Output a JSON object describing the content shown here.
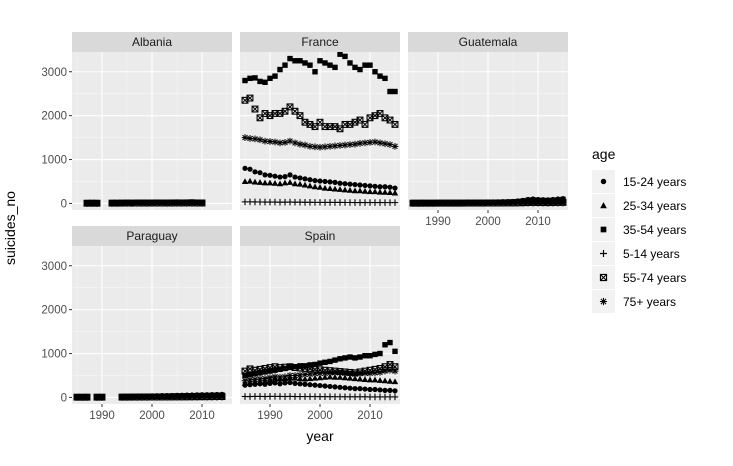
{
  "chart_data": {
    "type": "scatter",
    "facet_by": "country",
    "layout": "3 columns x 2 rows, shared axes",
    "xlabel": "year",
    "ylabel": "suicides_no",
    "xlim": [
      1984,
      2016
    ],
    "ylim": [
      -150,
      3450
    ],
    "x_ticks": [
      1990,
      2000,
      2010
    ],
    "y_ticks": [
      0,
      1000,
      2000,
      3000
    ],
    "grid": true,
    "legend": {
      "title": "age",
      "placement": "right",
      "entries": [
        {
          "label": "15-24 years",
          "shape": "circle"
        },
        {
          "label": "25-34 years",
          "shape": "triangle"
        },
        {
          "label": "35-54 years",
          "shape": "square"
        },
        {
          "label": "5-14 years",
          "shape": "plus"
        },
        {
          "label": "55-74 years",
          "shape": "boxed-x"
        },
        {
          "label": "75+ years",
          "shape": "asterisk"
        }
      ]
    },
    "series_order": [
      "15-24 years",
      "25-34 years",
      "35-54 years",
      "5-14 years",
      "55-74 years",
      "75+ years"
    ],
    "panels": [
      {
        "name": "Albania",
        "years": [
          1987,
          1988,
          1989,
          1992,
          1993,
          1994,
          1995,
          1996,
          1997,
          1998,
          1999,
          2000,
          2001,
          2002,
          2003,
          2004,
          2005,
          2006,
          2007,
          2008,
          2009,
          2010
        ],
        "values": {
          "15-24 years": [
            15,
            16,
            14,
            20,
            18,
            22,
            25,
            20,
            30,
            28,
            25,
            27,
            30,
            28,
            26,
            30,
            33,
            30,
            32,
            35,
            30,
            28
          ],
          "25-34 years": [
            10,
            11,
            10,
            14,
            13,
            16,
            18,
            15,
            22,
            20,
            18,
            20,
            22,
            21,
            19,
            22,
            24,
            22,
            23,
            25,
            22,
            20
          ],
          "35-54 years": [
            12,
            13,
            12,
            16,
            15,
            18,
            20,
            18,
            26,
            24,
            22,
            24,
            26,
            25,
            23,
            26,
            28,
            26,
            27,
            30,
            26,
            24
          ],
          "5-14 years": [
            1,
            2,
            1,
            2,
            2,
            3,
            3,
            2,
            3,
            3,
            2,
            3,
            3,
            2,
            2,
            3,
            3,
            3,
            2,
            3,
            2,
            2
          ],
          "55-74 years": [
            5,
            6,
            5,
            7,
            7,
            8,
            9,
            8,
            10,
            9,
            9,
            10,
            11,
            10,
            9,
            11,
            12,
            11,
            12,
            13,
            11,
            10
          ],
          "75+ years": [
            2,
            2,
            2,
            3,
            3,
            3,
            4,
            3,
            4,
            4,
            3,
            4,
            4,
            4,
            3,
            4,
            5,
            4,
            5,
            5,
            4,
            4
          ]
        }
      },
      {
        "name": "France",
        "years": [
          1985,
          1986,
          1987,
          1988,
          1989,
          1990,
          1991,
          1992,
          1993,
          1994,
          1995,
          1996,
          1997,
          1998,
          1999,
          2000,
          2001,
          2002,
          2003,
          2004,
          2005,
          2006,
          2007,
          2008,
          2009,
          2010,
          2011,
          2012,
          2013,
          2014,
          2015
        ],
        "values": {
          "15-24 years": [
            800,
            780,
            720,
            700,
            650,
            640,
            620,
            600,
            610,
            650,
            600,
            580,
            560,
            540,
            520,
            510,
            500,
            490,
            480,
            460,
            450,
            440,
            430,
            420,
            410,
            400,
            390,
            380,
            380,
            370,
            350
          ],
          "25-34 years": [
            500,
            510,
            490,
            480,
            470,
            470,
            460,
            450,
            470,
            480,
            450,
            440,
            420,
            400,
            380,
            370,
            350,
            340,
            330,
            320,
            310,
            300,
            290,
            290,
            280,
            270,
            270,
            260,
            255,
            250,
            240
          ],
          "35-54 years": [
            2800,
            2850,
            2860,
            2780,
            2760,
            2850,
            2900,
            3050,
            3150,
            3300,
            3250,
            3250,
            3200,
            3150,
            3000,
            3250,
            3200,
            3150,
            3100,
            3400,
            3350,
            3200,
            3100,
            3050,
            3150,
            3150,
            3000,
            2900,
            2850,
            2550,
            2550
          ],
          "5-14 years": [
            35,
            35,
            33,
            32,
            30,
            30,
            30,
            28,
            28,
            30,
            28,
            27,
            26,
            25,
            24,
            24,
            23,
            23,
            22,
            22,
            21,
            21,
            20,
            20,
            20,
            20,
            19,
            19,
            18,
            18,
            18
          ],
          "55-74 years": [
            2350,
            2400,
            2150,
            1950,
            2050,
            2000,
            2050,
            2050,
            2100,
            2200,
            2100,
            2000,
            1850,
            1800,
            1750,
            1850,
            1750,
            1750,
            1750,
            1700,
            1800,
            1800,
            1850,
            1900,
            1800,
            1950,
            2000,
            2050,
            1950,
            1900,
            1800
          ],
          "75+ years": [
            1500,
            1480,
            1470,
            1450,
            1420,
            1410,
            1400,
            1380,
            1390,
            1420,
            1380,
            1350,
            1330,
            1300,
            1290,
            1280,
            1290,
            1300,
            1310,
            1320,
            1330,
            1340,
            1350,
            1370,
            1380,
            1390,
            1400,
            1380,
            1360,
            1340,
            1300
          ]
        }
      },
      {
        "name": "Guatemala",
        "years": [
          1985,
          1986,
          1987,
          1988,
          1989,
          1990,
          1991,
          1992,
          1993,
          1994,
          1995,
          1996,
          1997,
          1998,
          1999,
          2000,
          2001,
          2002,
          2003,
          2004,
          2005,
          2006,
          2007,
          2008,
          2009,
          2010,
          2011,
          2012,
          2013,
          2014,
          2015
        ],
        "values": {
          "15-24 years": [
            25,
            24,
            26,
            25,
            24,
            26,
            27,
            28,
            27,
            26,
            28,
            30,
            29,
            30,
            31,
            32,
            34,
            36,
            38,
            40,
            45,
            55,
            70,
            90,
            100,
            90,
            85,
            80,
            90,
            100,
            110
          ],
          "25-34 years": [
            15,
            15,
            16,
            15,
            15,
            16,
            17,
            17,
            16,
            16,
            17,
            18,
            18,
            19,
            20,
            21,
            22,
            24,
            26,
            28,
            32,
            38,
            48,
            60,
            65,
            60,
            58,
            55,
            60,
            68,
            75
          ],
          "35-54 years": [
            18,
            18,
            19,
            18,
            18,
            19,
            20,
            20,
            19,
            19,
            20,
            22,
            21,
            22,
            23,
            24,
            26,
            28,
            30,
            32,
            36,
            44,
            55,
            70,
            80,
            72,
            68,
            65,
            72,
            80,
            90
          ],
          "5-14 years": [
            3,
            3,
            3,
            3,
            3,
            3,
            4,
            4,
            4,
            4,
            4,
            4,
            4,
            4,
            5,
            5,
            5,
            5,
            6,
            6,
            7,
            8,
            9,
            10,
            11,
            10,
            10,
            9,
            10,
            11,
            12
          ],
          "55-74 years": [
            6,
            6,
            6,
            6,
            6,
            7,
            7,
            7,
            7,
            7,
            7,
            8,
            8,
            8,
            8,
            9,
            9,
            10,
            10,
            11,
            12,
            14,
            16,
            20,
            22,
            20,
            19,
            18,
            20,
            22,
            24
          ],
          "75+ years": [
            2,
            2,
            2,
            2,
            2,
            2,
            2,
            2,
            2,
            2,
            3,
            3,
            3,
            3,
            3,
            3,
            3,
            3,
            4,
            4,
            4,
            5,
            5,
            6,
            7,
            6,
            6,
            6,
            6,
            7,
            8
          ]
        }
      },
      {
        "name": "Paraguay",
        "years": [
          1985,
          1986,
          1987,
          1989,
          1990,
          1994,
          1995,
          1996,
          1997,
          1998,
          1999,
          2000,
          2001,
          2002,
          2003,
          2004,
          2005,
          2006,
          2007,
          2008,
          2009,
          2010,
          2011,
          2012,
          2013,
          2014
        ],
        "values": {
          "15-24 years": [
            20,
            18,
            22,
            20,
            22,
            25,
            26,
            28,
            30,
            32,
            34,
            36,
            38,
            40,
            42,
            45,
            48,
            50,
            52,
            55,
            58,
            60,
            62,
            65,
            68,
            70
          ],
          "25-34 years": [
            12,
            11,
            13,
            12,
            13,
            15,
            16,
            17,
            18,
            19,
            20,
            22,
            23,
            24,
            25,
            27,
            29,
            30,
            31,
            33,
            35,
            36,
            37,
            39,
            41,
            42
          ],
          "35-54 years": [
            15,
            14,
            16,
            15,
            16,
            18,
            19,
            20,
            22,
            23,
            24,
            26,
            27,
            29,
            30,
            32,
            34,
            36,
            37,
            39,
            42,
            44,
            45,
            47,
            50,
            52
          ],
          "5-14 years": [
            2,
            2,
            2,
            2,
            2,
            3,
            3,
            3,
            3,
            3,
            3,
            4,
            4,
            4,
            4,
            4,
            5,
            5,
            5,
            5,
            6,
            6,
            6,
            6,
            7,
            7
          ],
          "55-74 years": [
            6,
            5,
            6,
            6,
            6,
            7,
            7,
            8,
            8,
            9,
            9,
            10,
            10,
            11,
            11,
            12,
            13,
            13,
            14,
            15,
            16,
            16,
            17,
            18,
            19,
            20
          ],
          "75+ years": [
            2,
            2,
            2,
            2,
            2,
            3,
            3,
            3,
            3,
            3,
            3,
            3,
            4,
            4,
            4,
            4,
            4,
            5,
            5,
            5,
            5,
            6,
            6,
            6,
            6,
            7
          ]
        }
      },
      {
        "name": "Spain",
        "years": [
          1985,
          1986,
          1987,
          1988,
          1989,
          1990,
          1991,
          1992,
          1993,
          1994,
          1995,
          1996,
          1997,
          1998,
          1999,
          2000,
          2001,
          2002,
          2003,
          2004,
          2005,
          2006,
          2007,
          2008,
          2009,
          2010,
          2011,
          2012,
          2013,
          2014,
          2015
        ],
        "values": {
          "15-24 years": [
            280,
            290,
            300,
            310,
            300,
            320,
            330,
            310,
            330,
            340,
            320,
            310,
            300,
            290,
            280,
            270,
            260,
            250,
            240,
            230,
            220,
            210,
            200,
            200,
            190,
            180,
            180,
            170,
            160,
            160,
            150
          ],
          "25-34 years": [
            320,
            340,
            350,
            360,
            370,
            400,
            420,
            420,
            430,
            450,
            440,
            430,
            420,
            430,
            440,
            450,
            460,
            470,
            460,
            460,
            450,
            440,
            430,
            420,
            410,
            400,
            400,
            390,
            380,
            370,
            360
          ],
          "35-54 years": [
            500,
            520,
            540,
            560,
            580,
            600,
            620,
            640,
            660,
            700,
            700,
            720,
            720,
            740,
            750,
            780,
            800,
            820,
            850,
            880,
            900,
            920,
            900,
            920,
            950,
            950,
            980,
            1000,
            1200,
            1250,
            1050
          ],
          "5-14 years": [
            20,
            20,
            22,
            22,
            20,
            22,
            24,
            22,
            20,
            22,
            20,
            20,
            18,
            18,
            18,
            16,
            16,
            16,
            15,
            15,
            14,
            14,
            14,
            13,
            13,
            12,
            12,
            12,
            12,
            11,
            11
          ],
          "55-74 years": [
            600,
            650,
            620,
            640,
            660,
            680,
            700,
            680,
            690,
            700,
            680,
            670,
            660,
            650,
            640,
            630,
            620,
            610,
            600,
            590,
            580,
            570,
            560,
            580,
            600,
            620,
            640,
            660,
            700,
            750,
            700
          ],
          "75+ years": [
            380,
            400,
            410,
            420,
            430,
            450,
            470,
            460,
            470,
            500,
            500,
            510,
            520,
            530,
            540,
            550,
            550,
            560,
            560,
            560,
            550,
            540,
            530,
            540,
            550,
            550,
            560,
            570,
            600,
            620,
            600
          ]
        }
      }
    ]
  }
}
